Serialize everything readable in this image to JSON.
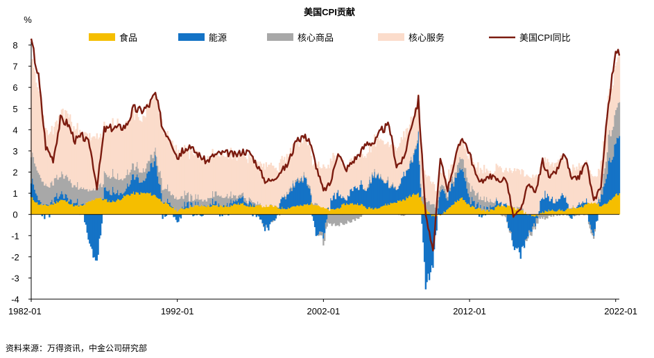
{
  "chart_data": {
    "type": "area",
    "title": "美国CPI贡献",
    "ylabel": "%",
    "xlabel": "",
    "ylim": [
      -4,
      8
    ],
    "yticks": [
      8,
      7,
      6,
      5,
      4,
      3,
      2,
      1,
      0,
      -1,
      -2,
      -3,
      -4
    ],
    "x_start": 1982.0,
    "x_end": 2022.25,
    "xticks": [
      {
        "year": 1982,
        "label": "1982-01"
      },
      {
        "year": 1992,
        "label": "1992-01"
      },
      {
        "year": 2002,
        "label": "2002-01"
      },
      {
        "year": 2012,
        "label": "2012-01"
      },
      {
        "year": 2022,
        "label": "2022-01"
      }
    ],
    "legend": [
      "食品",
      "能源",
      "核心商品",
      "核心服务",
      "美国CPI同比"
    ],
    "x": [
      1982,
      1982.5,
      1983,
      1983.5,
      1984,
      1984.5,
      1985,
      1985.5,
      1986,
      1986.5,
      1987,
      1987.5,
      1988,
      1988.5,
      1989,
      1989.5,
      1990,
      1990.5,
      1991,
      1991.5,
      1992,
      1992.5,
      1993,
      1993.5,
      1994,
      1994.5,
      1995,
      1995.5,
      1996,
      1996.5,
      1997,
      1997.5,
      1998,
      1998.5,
      1999,
      1999.5,
      2000,
      2000.5,
      2001,
      2001.5,
      2002,
      2002.5,
      2003,
      2003.5,
      2004,
      2004.5,
      2005,
      2005.5,
      2006,
      2006.5,
      2007,
      2007.5,
      2008,
      2008.5,
      2009,
      2009.5,
      2010,
      2010.5,
      2011,
      2011.5,
      2012,
      2012.5,
      2013,
      2013.5,
      2014,
      2014.5,
      2015,
      2015.5,
      2016,
      2016.5,
      2017,
      2017.5,
      2018,
      2018.5,
      2019,
      2019.5,
      2020,
      2020.5,
      2021,
      2021.5,
      2022,
      2022.25
    ],
    "series": [
      {
        "name": "食品",
        "color": "#F5BE00",
        "values": [
          0.8,
          0.5,
          0.4,
          0.5,
          0.7,
          0.6,
          0.4,
          0.4,
          0.6,
          0.8,
          0.7,
          0.6,
          0.7,
          0.9,
          1.0,
          1.0,
          1.0,
          0.9,
          0.6,
          0.4,
          0.2,
          0.3,
          0.4,
          0.4,
          0.4,
          0.4,
          0.4,
          0.4,
          0.5,
          0.5,
          0.4,
          0.4,
          0.4,
          0.4,
          0.3,
          0.3,
          0.4,
          0.4,
          0.5,
          0.5,
          0.3,
          0.2,
          0.3,
          0.5,
          0.5,
          0.5,
          0.3,
          0.3,
          0.4,
          0.5,
          0.6,
          0.7,
          0.9,
          1.0,
          0.3,
          -0.1,
          0.0,
          0.2,
          0.6,
          0.8,
          0.4,
          0.3,
          0.2,
          0.2,
          0.4,
          0.4,
          0.3,
          0.2,
          0.0,
          -0.1,
          0.1,
          0.2,
          0.2,
          0.2,
          0.3,
          0.3,
          0.5,
          0.6,
          0.4,
          0.6,
          0.9,
          1.0
        ]
      },
      {
        "name": "能源",
        "color": "#1473C6",
        "values": [
          0.8,
          0.2,
          -0.1,
          0.1,
          0.3,
          0.2,
          0.1,
          0.2,
          -1.5,
          -2.2,
          0.4,
          0.5,
          0.2,
          0.3,
          0.9,
          0.5,
          0.8,
          1.9,
          -0.1,
          0.2,
          -0.4,
          0.2,
          0.1,
          0.0,
          0.0,
          0.2,
          0.0,
          0.1,
          0.3,
          0.4,
          0.1,
          0.0,
          -0.6,
          -0.5,
          0.3,
          0.6,
          1.0,
          1.4,
          0.9,
          -1.0,
          -1.0,
          0.4,
          0.8,
          0.1,
          0.7,
          0.9,
          0.9,
          1.7,
          1.2,
          0.9,
          0.5,
          1.3,
          1.6,
          2.6,
          -3.4,
          -2.3,
          1.3,
          0.6,
          1.1,
          1.6,
          0.3,
          0.1,
          0.0,
          0.2,
          0.2,
          0.1,
          -1.6,
          -1.9,
          -1.0,
          -0.3,
          0.8,
          0.6,
          0.5,
          0.8,
          -0.3,
          0.2,
          0.1,
          -0.9,
          0.5,
          1.8,
          2.3,
          2.7
        ]
      },
      {
        "name": "核心商品",
        "color": "#A8A8A8",
        "values": [
          1.2,
          1.2,
          0.9,
          0.8,
          0.9,
          0.9,
          0.8,
          0.8,
          0.5,
          0.5,
          0.7,
          0.8,
          0.7,
          0.6,
          0.5,
          0.5,
          0.5,
          0.4,
          0.7,
          0.6,
          0.5,
          0.5,
          0.3,
          0.3,
          0.3,
          0.4,
          0.4,
          0.4,
          0.2,
          0.2,
          0.1,
          0.1,
          0.0,
          0.0,
          0.0,
          0.1,
          0.1,
          0.1,
          0.1,
          0.1,
          -0.3,
          -0.5,
          -0.5,
          -0.4,
          -0.3,
          -0.1,
          0.1,
          0.1,
          0.1,
          0.1,
          0.0,
          0.0,
          0.1,
          0.1,
          0.4,
          0.5,
          0.2,
          0.2,
          0.3,
          0.5,
          0.6,
          0.5,
          0.4,
          0.3,
          0.0,
          -0.1,
          0.0,
          0.1,
          -0.1,
          -0.2,
          -0.2,
          -0.1,
          0.0,
          0.0,
          0.0,
          0.0,
          0.0,
          -0.2,
          0.3,
          1.2,
          1.5,
          1.6
        ]
      },
      {
        "name": "核心服务",
        "color": "#FBDCCB",
        "values": [
          4.6,
          3.9,
          2.5,
          2.5,
          2.9,
          3.0,
          2.7,
          2.6,
          2.5,
          2.4,
          2.2,
          2.3,
          2.5,
          2.4,
          2.5,
          2.5,
          2.6,
          2.7,
          2.7,
          2.4,
          2.3,
          2.2,
          2.1,
          2.0,
          1.9,
          1.9,
          2.0,
          2.0,
          1.9,
          1.9,
          2.0,
          1.9,
          1.9,
          1.9,
          1.8,
          1.7,
          1.7,
          1.7,
          1.9,
          1.9,
          2.0,
          2.0,
          1.8,
          1.5,
          1.4,
          1.4,
          1.5,
          1.5,
          1.7,
          1.8,
          1.9,
          1.9,
          1.8,
          1.7,
          1.2,
          1.0,
          0.6,
          0.6,
          0.7,
          0.8,
          1.3,
          1.3,
          1.4,
          1.4,
          1.6,
          1.6,
          1.7,
          1.7,
          1.8,
          1.8,
          1.7,
          1.7,
          1.8,
          1.8,
          1.8,
          1.8,
          1.8,
          1.2,
          1.3,
          1.8,
          2.2,
          2.3
        ]
      },
      {
        "name": "美国CPI同比",
        "color": "#7B1B0F",
        "values": [
          8.2,
          6.5,
          3.2,
          2.6,
          4.5,
          4.3,
          3.5,
          3.7,
          3.3,
          1.3,
          4.0,
          4.1,
          4.1,
          4.2,
          5.0,
          4.9,
          5.1,
          5.7,
          4.1,
          3.6,
          2.7,
          3.1,
          3.1,
          2.8,
          2.5,
          2.8,
          2.9,
          2.9,
          2.8,
          3.0,
          2.9,
          2.3,
          1.6,
          1.6,
          2.0,
          2.3,
          3.2,
          3.7,
          3.6,
          2.3,
          1.1,
          1.5,
          3.0,
          2.1,
          2.5,
          2.9,
          3.4,
          3.4,
          4.0,
          4.2,
          2.3,
          2.6,
          4.2,
          5.4,
          0.0,
          -1.8,
          2.6,
          1.2,
          2.6,
          3.7,
          2.9,
          1.7,
          1.6,
          1.8,
          1.6,
          1.7,
          -0.1,
          0.2,
          1.4,
          1.0,
          2.5,
          1.7,
          2.1,
          2.9,
          1.6,
          1.8,
          2.5,
          0.6,
          1.4,
          5.3,
          7.5,
          7.5
        ]
      }
    ]
  },
  "source_text": "资料来源：万得资讯，中金公司研究部"
}
